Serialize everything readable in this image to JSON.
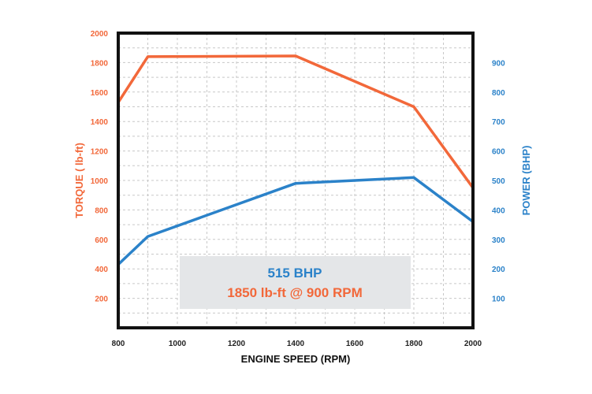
{
  "colors": {
    "torque": "#f2683a",
    "power": "#2b82c9",
    "frame": "#111111",
    "grid": "#c8c8c8",
    "annotation_bg": "#e4e6e8"
  },
  "chart_data": {
    "type": "line",
    "xlabel": "ENGINE SPEED (RPM)",
    "ylabel_left": "TORQUE ( lb-ft)",
    "ylabel_right": "POWER (BHP)",
    "xlim": [
      800,
      2000
    ],
    "ylim_left": [
      0,
      2000
    ],
    "ylim_right": [
      0,
      1000
    ],
    "x_ticks": [
      "800",
      "1000",
      "1200",
      "1400",
      "1600",
      "1800",
      "2000"
    ],
    "y_left_ticks": [
      "200",
      "400",
      "600",
      "800",
      "1000",
      "1200",
      "1400",
      "1600",
      "1800",
      "2000"
    ],
    "y_right_ticks": [
      "100",
      "200",
      "300",
      "400",
      "500",
      "600",
      "700",
      "800",
      "900"
    ],
    "grid": true,
    "series": [
      {
        "name": "",
        "axis": "left",
        "color": "#f2683a",
        "x": [
          800,
          900,
          1400,
          1800,
          2000
        ],
        "y": [
          1530,
          1840,
          1845,
          1500,
          950
        ]
      },
      {
        "name": "",
        "axis": "right",
        "color": "#2b82c9",
        "x": [
          800,
          900,
          1400,
          1800,
          2000
        ],
        "y": [
          215,
          310,
          490,
          510,
          360
        ]
      }
    ],
    "annotation": {
      "line1": "515 BHP",
      "line2": "1850 lb-ft @ 900 RPM"
    }
  }
}
